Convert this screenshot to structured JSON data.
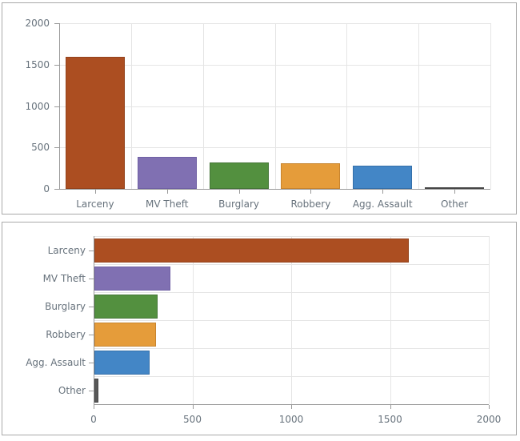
{
  "style": {
    "text_color": "#67727c",
    "grid_color": "#e5e5e5",
    "axis_color": "#9a9a9a",
    "panel_border": "#a9a9a9",
    "background": "#ffffff"
  },
  "chart_data": [
    {
      "type": "bar",
      "orientation": "vertical",
      "title": "",
      "xlabel": "",
      "ylabel": "",
      "categories": [
        "Larceny",
        "MV Theft",
        "Burglary",
        "Robbery",
        "Agg. Assault",
        "Other"
      ],
      "values": [
        1590,
        385,
        320,
        310,
        280,
        20
      ],
      "value_axis": {
        "ticks": [
          0,
          500,
          1000,
          1500,
          2000
        ],
        "lim": [
          0,
          2000
        ]
      },
      "grid": true,
      "legend": "none",
      "bar_colors": [
        "#ac4e21",
        "#8070b2",
        "#53903f",
        "#e59c3a",
        "#4386c6",
        "#595959"
      ],
      "bar_border_colors": [
        "#93421c",
        "#6f60a4",
        "#447537",
        "#c7842e",
        "#346fa9",
        "#454545"
      ]
    },
    {
      "type": "bar",
      "orientation": "horizontal",
      "title": "",
      "xlabel": "",
      "ylabel": "",
      "categories": [
        "Larceny",
        "MV Theft",
        "Burglary",
        "Robbery",
        "Agg. Assault",
        "Other"
      ],
      "values": [
        1590,
        385,
        320,
        310,
        280,
        20
      ],
      "value_axis": {
        "ticks": [
          0,
          500,
          1000,
          1500,
          2000
        ],
        "lim": [
          0,
          2000
        ]
      },
      "grid": true,
      "legend": "none",
      "bar_colors": [
        "#ac4e21",
        "#8070b2",
        "#53903f",
        "#e59c3a",
        "#4386c6",
        "#595959"
      ],
      "bar_border_colors": [
        "#93421c",
        "#6f60a4",
        "#447537",
        "#c7842e",
        "#346fa9",
        "#454545"
      ]
    }
  ]
}
